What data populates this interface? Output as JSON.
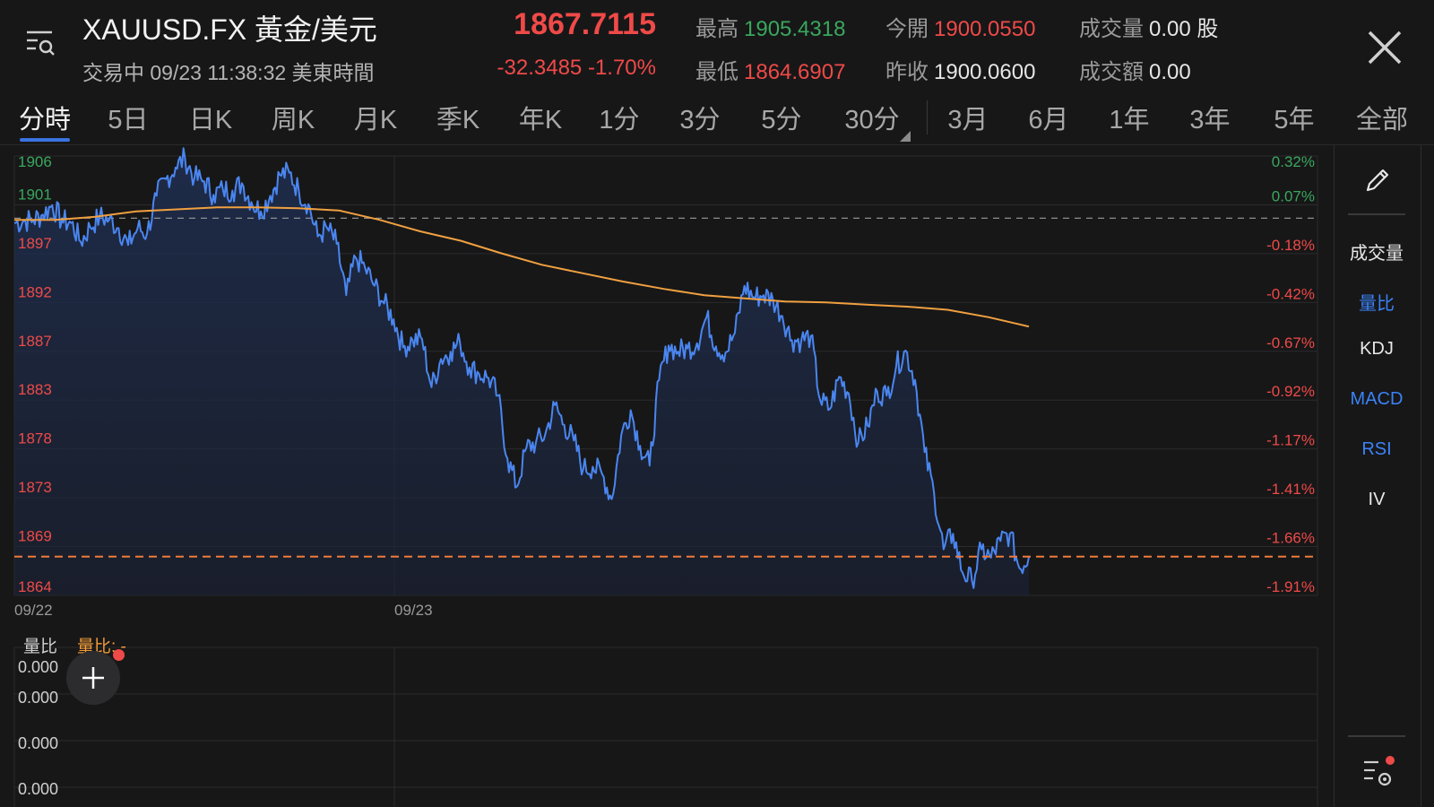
{
  "header": {
    "symbol": "XAUUSD.FX 黃金/美元",
    "status": "交易中 09/23 11:38:32 美東時間",
    "price": "1867.7115",
    "change": "-32.3485  -1.70%",
    "stats": {
      "high_label": "最高",
      "high": "1905.4318",
      "open_label": "今開",
      "open": "1900.0550",
      "volume_label": "成交量",
      "volume": "0.00 股",
      "low_label": "最低",
      "low": "1864.6907",
      "prev_close_label": "昨收",
      "prev_close": "1900.0600",
      "turnover_label": "成交額",
      "turnover": "0.00"
    }
  },
  "tabs": [
    "分時",
    "5日",
    "日K",
    "周K",
    "月K",
    "季K",
    "年K",
    "1分",
    "3分",
    "5分",
    "30分",
    "3月",
    "6月",
    "1年",
    "3年",
    "5年",
    "全部"
  ],
  "active_tab": "分時",
  "side_panel": {
    "items": [
      {
        "label": "成交量",
        "color": "#e8e8e8"
      },
      {
        "label": "量比",
        "color": "#3b82f6"
      },
      {
        "label": "KDJ",
        "color": "#e8e8e8"
      },
      {
        "label": "MACD",
        "color": "#3b82f6"
      },
      {
        "label": "RSI",
        "color": "#3b82f6"
      },
      {
        "label": "IV",
        "color": "#e8e8e8"
      }
    ]
  },
  "colors": {
    "price_line": "#4a86f0",
    "avg_line": "#f0a040",
    "up": "#3aa75d",
    "down": "#ef4a48",
    "accent": "#3a73e0"
  },
  "chart_data": {
    "type": "line",
    "y_ticks": [
      "1906",
      "1901",
      "1897",
      "1892",
      "1887",
      "1883",
      "1878",
      "1873",
      "1869",
      "1864"
    ],
    "y_pct_ticks": [
      "0.32%",
      "0.07%",
      "-0.18%",
      "-0.42%",
      "-0.67%",
      "-0.92%",
      "-1.17%",
      "-1.41%",
      "-1.66%",
      "-1.91%"
    ],
    "x_ticks": [
      "09/22",
      "09/23"
    ],
    "ylim": [
      1864,
      1906
    ],
    "prev_close": 1900.06,
    "last_price": 1867.7115,
    "series": [
      {
        "name": "",
        "values": [
          1899.6,
          1899.8,
          1899.9,
          1900.4,
          1901.3,
          1899.8,
          1899.6,
          1897.8,
          1899.2,
          1900.2,
          1899.9,
          1899.1,
          1897.5,
          1899.1,
          1898.6,
          1902.2,
          1903.8,
          1904.9,
          1905.8,
          1903.9,
          1903.6,
          1902.3,
          1902.8,
          1902.7,
          1903.4,
          1901.6,
          1900.7,
          1902.2,
          1904.2,
          1904.4,
          1902.7,
          1901.4,
          1898.3,
          1899.1,
          1897.6,
          1892.7,
          1896.3,
          1895.3,
          1893.6,
          1891.9,
          1890.4,
          1887.7,
          1888.4,
          1888.5,
          1883.9,
          1886.6,
          1887.3,
          1888.2,
          1885.8,
          1885.2,
          1884.8,
          1883.1,
          1877.1,
          1874.4,
          1878.1,
          1878.6,
          1879.4,
          1882.2,
          1880.3,
          1878.8,
          1876.1,
          1876.3,
          1875.6,
          1873.2,
          1879.3,
          1881.7,
          1878.3,
          1876.4,
          1884.6,
          1887.9,
          1887.3,
          1887.6,
          1888.1,
          1890.6,
          1887.8,
          1887.2,
          1889.1,
          1893.6,
          1892.5,
          1892.7,
          1892.3,
          1890.7,
          1888.4,
          1888.4,
          1888.8,
          1882.6,
          1881.8,
          1884.9,
          1883.3,
          1878.6,
          1880.2,
          1883.5,
          1883.1,
          1885.9,
          1887.4,
          1884.6,
          1877.7,
          1873.8,
          1868.4,
          1869.9,
          1866.2,
          1865.4,
          1868.4,
          1867.6,
          1869.2,
          1869.9,
          1866.6,
          1867.7
        ]
      },
      {
        "name": "",
        "values": [
          1899.9,
          1899.9,
          1900.2,
          1900.7,
          1900.9,
          1901.1,
          1901.1,
          1901.0,
          1900.8,
          1899.9,
          1898.8,
          1897.9,
          1896.7,
          1895.6,
          1894.8,
          1894.0,
          1893.3,
          1892.7,
          1892.4,
          1892.1,
          1892.0,
          1891.8,
          1891.6,
          1891.3,
          1890.6,
          1889.7
        ]
      }
    ]
  },
  "volume_panel": {
    "title": "量比",
    "subtitle": "量比: -",
    "ticks": [
      "0.000",
      "0.000",
      "0.000",
      "0.000"
    ]
  }
}
